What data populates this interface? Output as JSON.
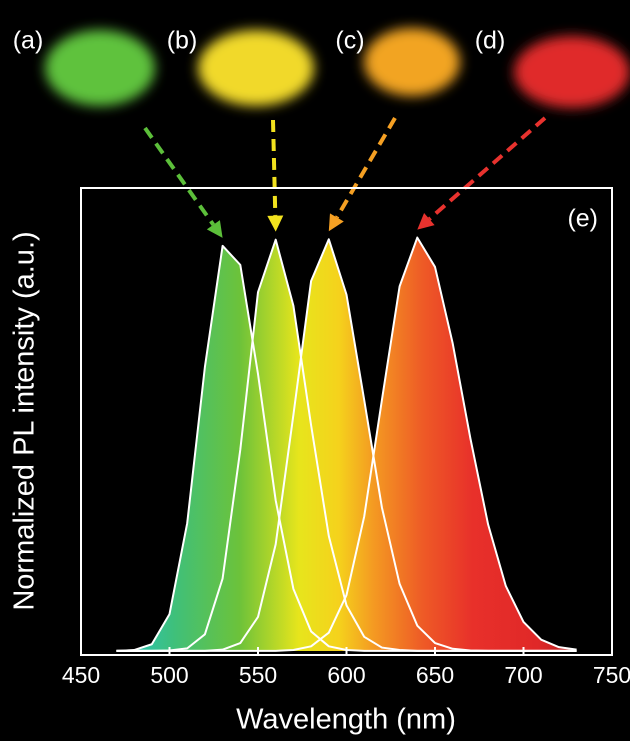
{
  "chart_data": {
    "type": "area",
    "x_label": "Wavelength (nm)",
    "y_label": "Normalized PL intensity (a.u.)",
    "annotation": "(e)",
    "x": [
      470,
      480,
      490,
      500,
      510,
      520,
      530,
      540,
      550,
      560,
      570,
      580,
      590,
      600,
      610,
      620,
      630,
      640,
      650,
      660,
      670,
      680,
      690,
      700,
      710,
      720,
      730
    ],
    "series": [
      {
        "label": "(a)",
        "color": "#5cbf3a",
        "values": [
          0,
          0.002,
          0.016,
          0.089,
          0.309,
          0.687,
          0.98,
          0.934,
          0.67,
          0.364,
          0.15,
          0.047,
          0.011,
          0.002,
          0,
          0,
          0,
          0,
          0,
          0,
          0,
          0,
          0,
          0,
          0,
          0,
          0
        ]
      },
      {
        "label": "(b)",
        "color": "#f2e21e",
        "values": [
          0,
          0,
          0,
          0.001,
          0.006,
          0.04,
          0.175,
          0.487,
          0.868,
          0.995,
          0.835,
          0.546,
          0.278,
          0.11,
          0.034,
          0.008,
          0.002,
          0,
          0,
          0,
          0,
          0,
          0,
          0,
          0,
          0,
          0
        ]
      },
      {
        "label": "(c)",
        "color": "#f5a023",
        "values": [
          0,
          0,
          0,
          0,
          0,
          0,
          0.003,
          0.019,
          0.082,
          0.258,
          0.571,
          0.895,
          0.996,
          0.862,
          0.607,
          0.347,
          0.162,
          0.061,
          0.019,
          0.005,
          0.001,
          0,
          0,
          0,
          0,
          0,
          0
        ]
      },
      {
        "label": "(d)",
        "color": "#e8322e",
        "values": [
          0,
          0,
          0,
          0,
          0,
          0,
          0,
          0,
          0,
          0,
          0.002,
          0.011,
          0.044,
          0.135,
          0.325,
          0.607,
          0.882,
          1,
          0.929,
          0.744,
          0.514,
          0.306,
          0.157,
          0.07,
          0.027,
          0.009,
          0.003
        ]
      }
    ],
    "xlim": [
      450,
      750
    ],
    "xticks": [
      450,
      500,
      550,
      600,
      650,
      700,
      750
    ],
    "ylim": [
      -0.01,
      1.12
    ]
  }
}
